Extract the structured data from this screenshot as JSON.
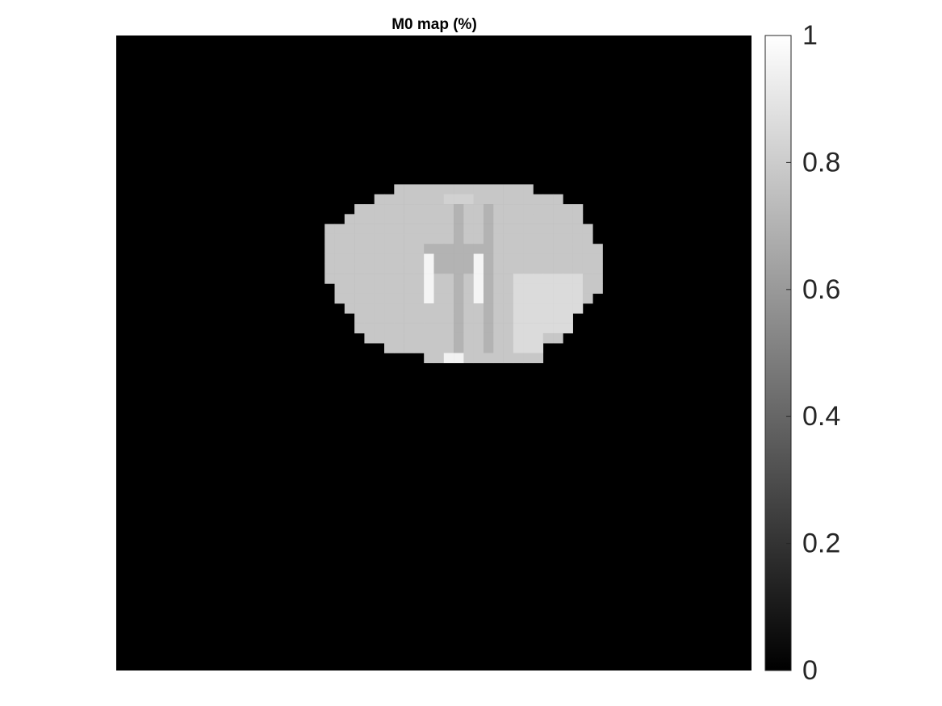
{
  "chart_data": {
    "type": "heatmap",
    "title": "M0 map (%)",
    "xlabel": "",
    "ylabel": "",
    "colormap": "gray",
    "clim": [
      0,
      1
    ],
    "colorbar": {
      "ticks": [
        0,
        0.2,
        0.4,
        0.6,
        0.8,
        1
      ],
      "tick_labels": [
        "0",
        "0.2",
        "0.4",
        "0.6",
        "0.8",
        "1"
      ]
    },
    "background_value": 0,
    "grid_size": [
      64,
      64
    ],
    "mask_row_start": 15,
    "mask_rows": [
      [
        28,
        41
      ],
      [
        26,
        44
      ],
      [
        24,
        46
      ],
      [
        23,
        46
      ],
      [
        21,
        47
      ],
      [
        21,
        47
      ],
      [
        21,
        48
      ],
      [
        21,
        48
      ],
      [
        21,
        48
      ],
      [
        21,
        48
      ],
      [
        22,
        48
      ],
      [
        22,
        47
      ],
      [
        23,
        46
      ],
      [
        24,
        45
      ],
      [
        24,
        45
      ],
      [
        25,
        44
      ],
      [
        27,
        42
      ],
      [
        31,
        42
      ]
    ],
    "base_value": 0.78,
    "regions": [
      {
        "rows": [
          17,
          31
        ],
        "cols": [
          34,
          34
        ],
        "value": 0.7
      },
      {
        "rows": [
          17,
          31
        ],
        "cols": [
          37,
          37
        ],
        "value": 0.7
      },
      {
        "rows": [
          21,
          23
        ],
        "cols": [
          31,
          36
        ],
        "value": 0.7
      },
      {
        "rows": [
          22,
          26
        ],
        "cols": [
          31,
          31
        ],
        "value": 0.96
      },
      {
        "rows": [
          22,
          26
        ],
        "cols": [
          36,
          36
        ],
        "value": 0.96
      },
      {
        "rows": [
          24,
          29
        ],
        "cols": [
          40,
          46
        ],
        "value": 0.86
      },
      {
        "rows": [
          30,
          31
        ],
        "cols": [
          40,
          42
        ],
        "value": 0.86
      },
      {
        "rows": [
          32,
          32
        ],
        "cols": [
          33,
          34
        ],
        "value": 0.95
      },
      {
        "rows": [
          16,
          16
        ],
        "cols": [
          33,
          35
        ],
        "value": 0.82
      }
    ]
  }
}
